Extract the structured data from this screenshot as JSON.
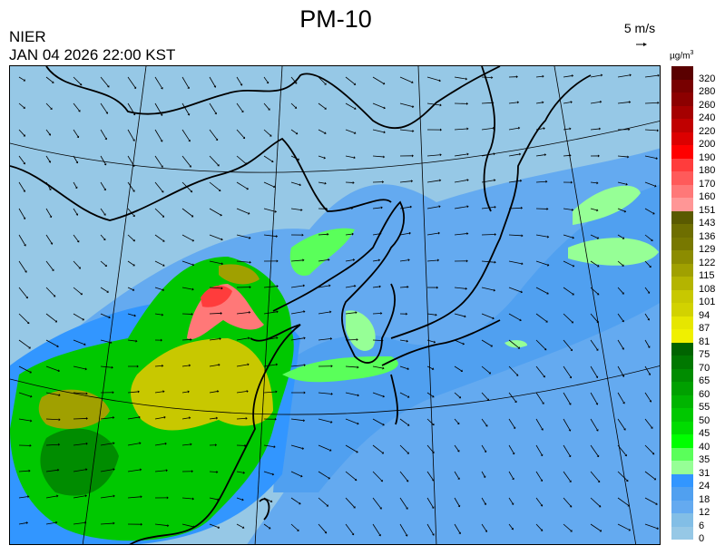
{
  "header": {
    "title": "PM-10",
    "organization": "NIER",
    "datetime": "JAN 04 2026 22:00 KST",
    "reference_vector_label": "5 m/s"
  },
  "legend": {
    "unit": "µg/m",
    "unit_exponent": "3",
    "labels": [
      "320",
      "280",
      "260",
      "240",
      "220",
      "200",
      "190",
      "180",
      "170",
      "160",
      "151",
      "143",
      "136",
      "129",
      "122",
      "115",
      "108",
      "101",
      "94",
      "87",
      "81",
      "75",
      "70",
      "65",
      "60",
      "55",
      "50",
      "45",
      "40",
      "35",
      "31",
      "24",
      "18",
      "12",
      "6",
      "0"
    ],
    "colors": [
      "#5a0000",
      "#780000",
      "#8c0000",
      "#a50000",
      "#c00000",
      "#dc0000",
      "#ff0000",
      "#ff3c3c",
      "#ff5a5a",
      "#ff7878",
      "#ff9696",
      "#5a5a00",
      "#6e6e00",
      "#787800",
      "#8c8c00",
      "#a0a000",
      "#b4b400",
      "#c8c800",
      "#d2d200",
      "#e6e600",
      "#f0f000",
      "#006400",
      "#007800",
      "#008c00",
      "#00a000",
      "#00b400",
      "#00c800",
      "#00dc00",
      "#00ff00",
      "#5aff5a",
      "#96ff96",
      "#3296ff",
      "#50a0f0",
      "#64aaf0",
      "#82bee6",
      "#96c8e6"
    ]
  },
  "map": {
    "background_color": "#96c8e6",
    "wind_direction": "predominantly northwesterly, flowing toward southeast"
  }
}
